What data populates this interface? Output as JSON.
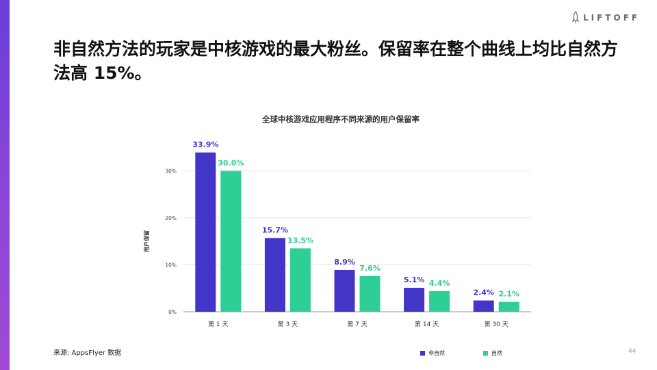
{
  "brand": {
    "name": "LIFTOFF",
    "icon": "rocket-icon"
  },
  "headline": "非自然方法的玩家是中核游戏的最大粉丝。保留率在整个曲线上均比自然方法高 15%。",
  "source": "来源: AppsFlyer 数据",
  "page_number": "44",
  "colors": {
    "non_organic": "#4435c9",
    "organic": "#2ecf94",
    "accent": "#7b44d8"
  },
  "chart_data": {
    "type": "bar",
    "title": "全球中核游戏应用程序不同来源的用户保留率",
    "ylabel": "用户保留",
    "xlabel": "",
    "categories": [
      "第 1 天",
      "第 3 天",
      "第 7 天",
      "第 14 天",
      "第 30 天"
    ],
    "series": [
      {
        "name": "非自然",
        "color": "#4435c9",
        "values": [
          33.9,
          15.7,
          8.9,
          5.1,
          2.4
        ],
        "labels": [
          "33.9%",
          "15.7%",
          "8.9%",
          "5.1%",
          "2.4%"
        ]
      },
      {
        "name": "自然",
        "color": "#2ecf94",
        "values": [
          30.0,
          13.5,
          7.6,
          4.4,
          2.1
        ],
        "labels": [
          "30.0%",
          "13.5%",
          "7.6%",
          "4.4%",
          "2.1%"
        ]
      }
    ],
    "yticks": [
      0,
      10,
      20,
      30
    ],
    "ytick_labels": [
      "0%",
      "10%",
      "20%",
      "30%"
    ],
    "ylim": [
      0,
      35
    ],
    "grid": true,
    "legend": "bottom-right"
  }
}
